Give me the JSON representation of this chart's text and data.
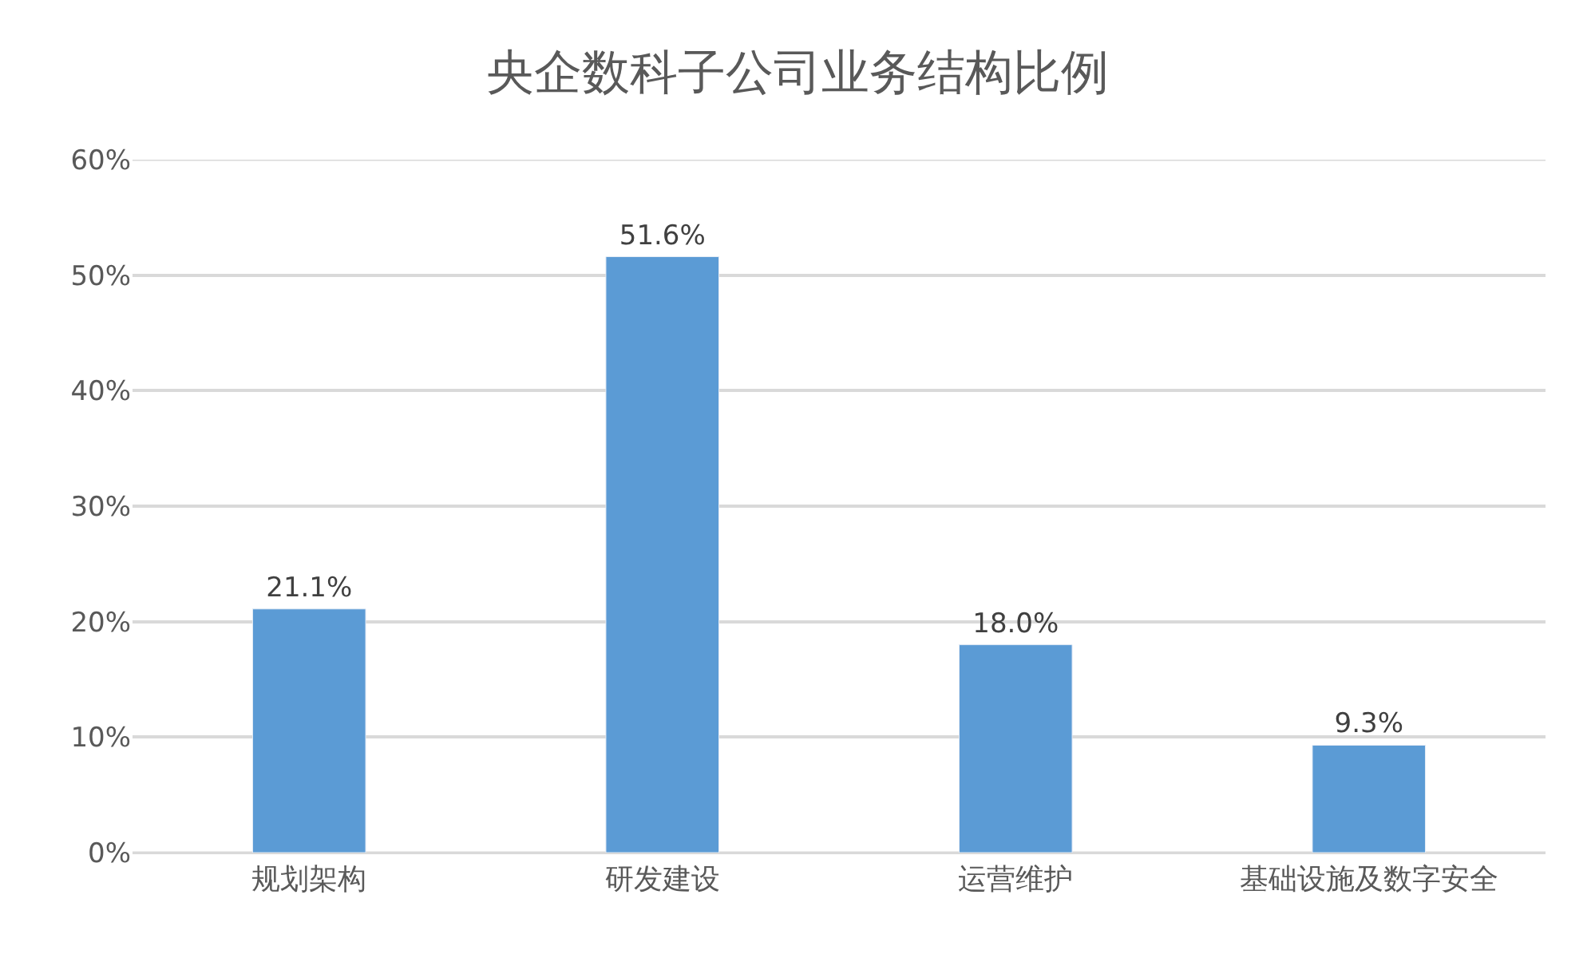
{
  "chart_data": {
    "type": "bar",
    "title": "央企数科子公司业务结构比例",
    "categories": [
      "规划架构",
      "研发建设",
      "运营维护",
      "基础设施及数字安全"
    ],
    "values": [
      21.1,
      51.6,
      18.0,
      9.3
    ],
    "value_labels": [
      "21.1%",
      "51.6%",
      "18.0%",
      "9.3%"
    ],
    "color": "#5b9bd5",
    "ylim": [
      0,
      60
    ],
    "yticks": [
      {
        "value": 0,
        "label": "0%"
      },
      {
        "value": 10,
        "label": "10%"
      },
      {
        "value": 20,
        "label": "20%"
      },
      {
        "value": 30,
        "label": "30%"
      },
      {
        "value": 40,
        "label": "40%"
      },
      {
        "value": 50,
        "label": "50%"
      },
      {
        "value": 60,
        "label": "60%"
      }
    ],
    "grid": "y"
  }
}
